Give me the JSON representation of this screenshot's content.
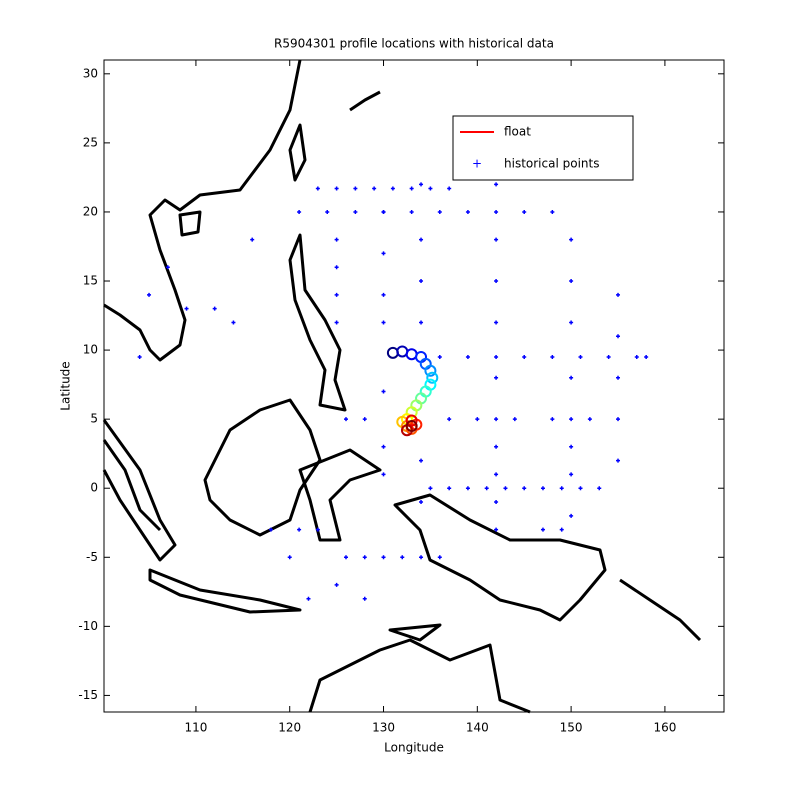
{
  "chart_data": {
    "type": "scatter",
    "title": "R5904301 profile locations with historical data",
    "xlabel": "Longitude",
    "ylabel": "Latitude",
    "xlim": [
      100.2,
      166.3
    ],
    "ylim": [
      -16.2,
      31
    ],
    "xticks": [
      110,
      120,
      130,
      140,
      150,
      160
    ],
    "yticks": [
      -15,
      -10,
      -5,
      0,
      5,
      10,
      15,
      20,
      25,
      30
    ],
    "series": [
      {
        "name": "float",
        "color": "#ff0000",
        "x": [
          131,
          132,
          133,
          134,
          134.5,
          135,
          135.2,
          135,
          134.5,
          134,
          133.5,
          133,
          132.5,
          132,
          132.5,
          133,
          133.5,
          133,
          132.5,
          133
        ],
        "y": [
          9.8,
          9.9,
          9.7,
          9.5,
          9,
          8.5,
          8,
          7.5,
          7,
          6.5,
          6,
          5.5,
          5,
          4.8,
          4.5,
          4.3,
          4.6,
          4.9,
          4.2,
          4.5
        ]
      },
      {
        "name": "historical points",
        "color": "#0000ff",
        "x": [
          123,
          125,
          127,
          129,
          131,
          133,
          135,
          137,
          121,
          124,
          127,
          130,
          133,
          136,
          139,
          142,
          145,
          148,
          135,
          137,
          139,
          141,
          143,
          145,
          147,
          149,
          151,
          153,
          136,
          139,
          142,
          145,
          148,
          151,
          154,
          157,
          158,
          126,
          128,
          137,
          140,
          144,
          148,
          152,
          125,
          125,
          125,
          125,
          142,
          142,
          142,
          142,
          142,
          142,
          142,
          142,
          142,
          142,
          150,
          150,
          150,
          150,
          150,
          150,
          150,
          150,
          155,
          155,
          155,
          155,
          155,
          130,
          130,
          130,
          130,
          130,
          130,
          130,
          134,
          134,
          134,
          134,
          134,
          134,
          126,
          128,
          130,
          132,
          134,
          136,
          121,
          123,
          147,
          149,
          105,
          107,
          109,
          112,
          114,
          116,
          104,
          118,
          120,
          122,
          125,
          128
        ],
        "y": [
          21.7,
          21.7,
          21.7,
          21.7,
          21.7,
          21.7,
          21.7,
          21.7,
          20,
          20,
          20,
          20,
          20,
          20,
          20,
          20,
          20,
          20,
          0,
          0,
          0,
          0,
          0,
          0,
          0,
          0,
          0,
          0,
          9.5,
          9.5,
          9.5,
          9.5,
          9.5,
          9.5,
          9.5,
          9.5,
          9.5,
          5,
          5,
          5,
          5,
          5,
          5,
          5,
          18,
          16,
          14,
          12,
          22,
          18,
          15,
          12,
          8,
          5,
          3,
          1,
          -1,
          -3,
          18,
          15,
          12,
          8,
          5,
          3,
          1,
          -2,
          14,
          11,
          8,
          5,
          2,
          20,
          17,
          14,
          12,
          7,
          3,
          1,
          22,
          18,
          15,
          12,
          2,
          -1,
          -5,
          -5,
          -5,
          -5,
          -5,
          -5,
          -3,
          -3,
          -3,
          -3,
          14,
          16,
          13,
          13,
          12,
          18,
          9.5,
          -3,
          -5,
          -8,
          -7,
          -8
        ]
      }
    ]
  }
}
